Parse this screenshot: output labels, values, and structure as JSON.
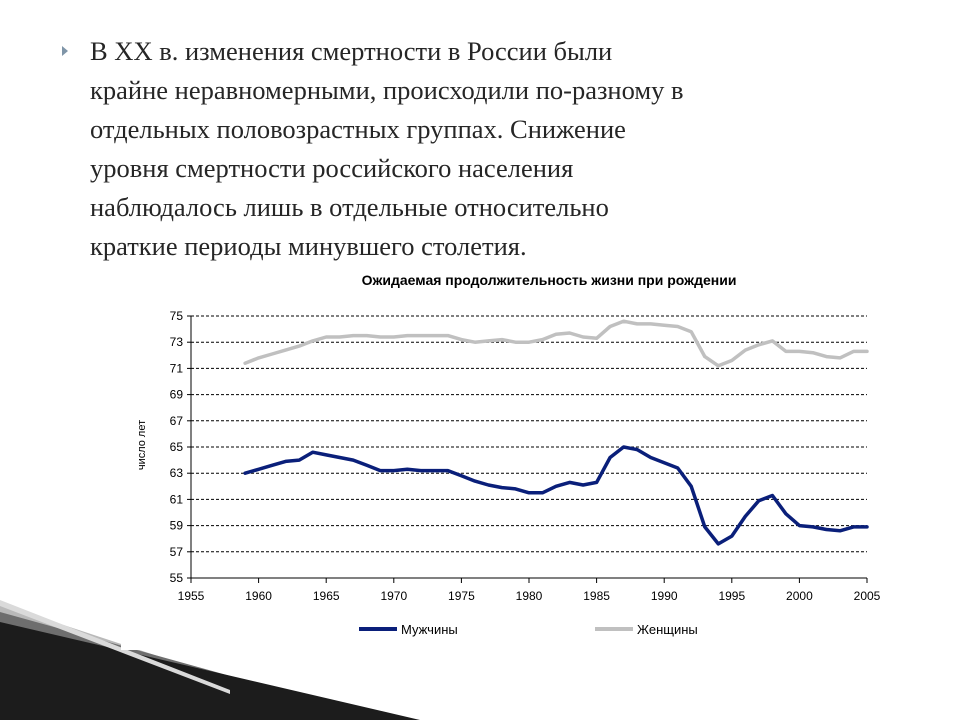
{
  "slide": {
    "bullet_icon": "triangle-bullet-icon",
    "text": "В XX в. изменения смертности в России были\nкрайне неравномерными, происходили по-разному в\nотдельных половозрастных группах. Снижение\nуровня смертности российского населения\nнаблюдалось лишь в отдельные относительно\nкраткие периоды минувшего столетия."
  },
  "chart_data": {
    "type": "line",
    "title": "Ожидаемая продолжительность жизни при рождении",
    "xlabel": "",
    "ylabel": "число лет",
    "xlim": [
      1955,
      2005
    ],
    "ylim": [
      55,
      75
    ],
    "x_ticks": [
      "1955",
      "1960",
      "1965",
      "1970",
      "1975",
      "1980",
      "1985",
      "1990",
      "1995",
      "2000",
      "2005"
    ],
    "y_ticks": [
      "55",
      "57",
      "59",
      "61",
      "63",
      "65",
      "67",
      "69",
      "71",
      "73",
      "75"
    ],
    "grid": "horizontal dashed",
    "legend_position": "bottom",
    "series": [
      {
        "name": "Мужчины",
        "color": "#0a1f7a",
        "x": [
          1959,
          1960,
          1961,
          1962,
          1963,
          1964,
          1965,
          1966,
          1967,
          1968,
          1969,
          1970,
          1971,
          1972,
          1973,
          1974,
          1975,
          1976,
          1977,
          1978,
          1979,
          1980,
          1981,
          1982,
          1983,
          1984,
          1985,
          1986,
          1987,
          1988,
          1989,
          1990,
          1991,
          1992,
          1993,
          1994,
          1995,
          1996,
          1997,
          1998,
          1999,
          2000,
          2001,
          2002,
          2003,
          2004,
          2005
        ],
        "values": [
          63.0,
          63.3,
          63.6,
          63.9,
          64.0,
          64.6,
          64.4,
          64.2,
          64.0,
          63.6,
          63.2,
          63.2,
          63.3,
          63.2,
          63.2,
          63.2,
          62.8,
          62.4,
          62.1,
          61.9,
          61.8,
          61.5,
          61.5,
          62.0,
          62.3,
          62.1,
          62.3,
          64.2,
          65.0,
          64.8,
          64.2,
          63.8,
          63.4,
          62.0,
          58.9,
          57.6,
          58.2,
          59.7,
          60.9,
          61.3,
          59.9,
          59.0,
          58.9,
          58.7,
          58.6,
          58.9,
          58.9
        ]
      },
      {
        "name": "Женщины",
        "color": "#c0c0c0",
        "x": [
          1959,
          1960,
          1961,
          1962,
          1963,
          1964,
          1965,
          1966,
          1967,
          1968,
          1969,
          1970,
          1971,
          1972,
          1973,
          1974,
          1975,
          1976,
          1977,
          1978,
          1979,
          1980,
          1981,
          1982,
          1983,
          1984,
          1985,
          1986,
          1987,
          1988,
          1989,
          1990,
          1991,
          1992,
          1993,
          1994,
          1995,
          1996,
          1997,
          1998,
          1999,
          2000,
          2001,
          2002,
          2003,
          2004,
          2005
        ],
        "values": [
          71.4,
          71.8,
          72.1,
          72.4,
          72.7,
          73.1,
          73.4,
          73.4,
          73.5,
          73.5,
          73.4,
          73.4,
          73.5,
          73.5,
          73.5,
          73.5,
          73.2,
          73.0,
          73.1,
          73.2,
          73.0,
          73.0,
          73.2,
          73.6,
          73.7,
          73.4,
          73.3,
          74.2,
          74.6,
          74.4,
          74.4,
          74.3,
          74.2,
          73.8,
          71.9,
          71.2,
          71.6,
          72.4,
          72.8,
          73.1,
          72.3,
          72.3,
          72.2,
          71.9,
          71.8,
          72.3,
          72.3
        ]
      }
    ]
  }
}
